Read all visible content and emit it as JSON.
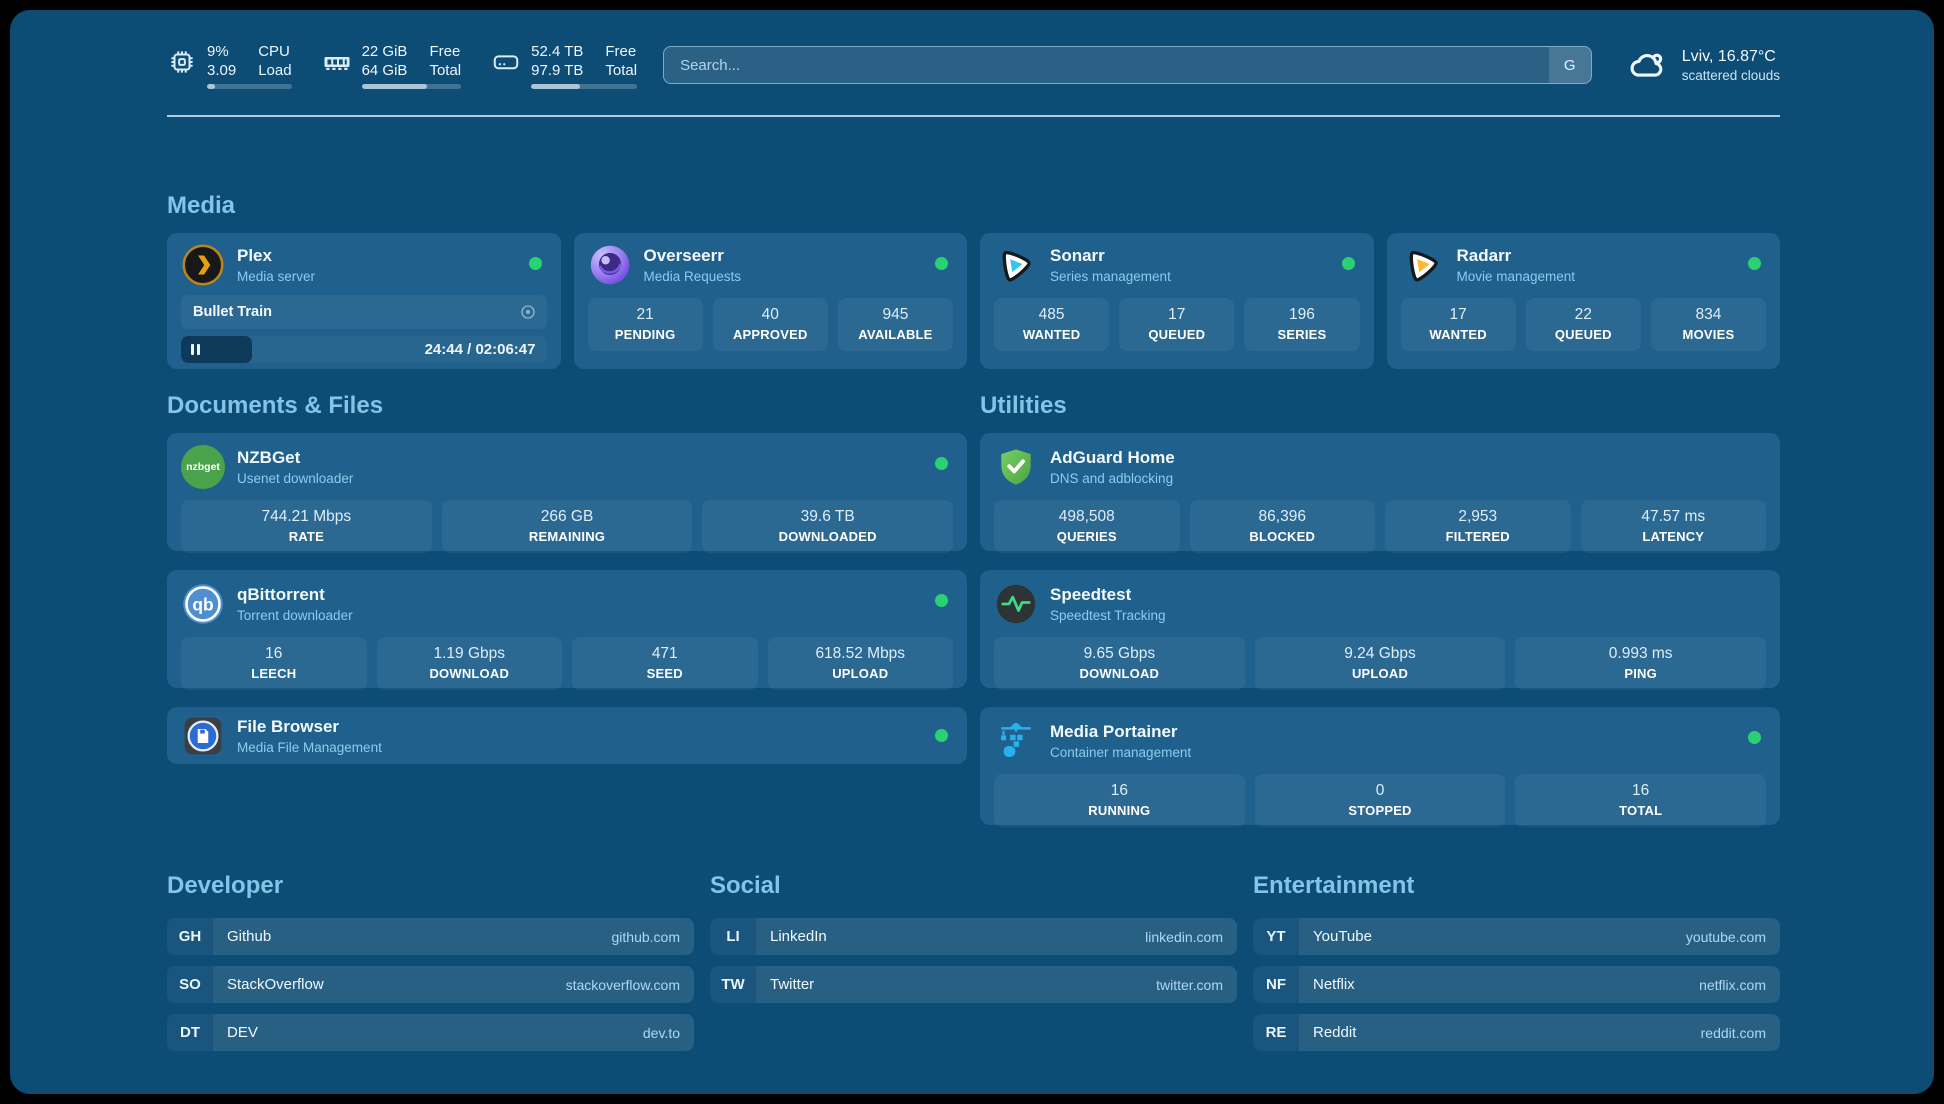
{
  "topbar": {
    "metrics": [
      {
        "value1": "9%",
        "value2": "3.09",
        "label1": "CPU",
        "label2": "Load",
        "progress_pct": 9
      },
      {
        "value1": "22 GiB",
        "value2": "64 GiB",
        "label1": "Free",
        "label2": "Total",
        "progress_pct": 66
      },
      {
        "value1": "52.4 TB",
        "value2": "97.9 TB",
        "label1": "Free",
        "label2": "Total",
        "progress_pct": 46
      }
    ],
    "search": {
      "placeholder": "Search...",
      "button_label": "G"
    },
    "weather": {
      "location": "Lviv, 16.87°C",
      "condition": "scattered clouds"
    }
  },
  "sections": {
    "media": {
      "title": "Media",
      "cards": [
        {
          "name": "Plex",
          "subtitle": "Media server",
          "status": "online",
          "now_playing": {
            "title": "Bullet Train",
            "time": "24:44 / 02:06:47",
            "progress_pct": 19.5
          }
        },
        {
          "name": "Overseerr",
          "subtitle": "Media Requests",
          "status": "online",
          "stats": [
            {
              "value": "21",
              "label": "PENDING"
            },
            {
              "value": "40",
              "label": "APPROVED"
            },
            {
              "value": "945",
              "label": "AVAILABLE"
            }
          ]
        },
        {
          "name": "Sonarr",
          "subtitle": "Series management",
          "status": "online",
          "stats": [
            {
              "value": "485",
              "label": "WANTED"
            },
            {
              "value": "17",
              "label": "QUEUED"
            },
            {
              "value": "196",
              "label": "SERIES"
            }
          ]
        },
        {
          "name": "Radarr",
          "subtitle": "Movie management",
          "status": "online",
          "stats": [
            {
              "value": "17",
              "label": "WANTED"
            },
            {
              "value": "22",
              "label": "QUEUED"
            },
            {
              "value": "834",
              "label": "MOVIES"
            }
          ]
        }
      ]
    },
    "documents": {
      "title": "Documents & Files",
      "cards": [
        {
          "name": "NZBGet",
          "subtitle": "Usenet downloader",
          "status": "online",
          "stats": [
            {
              "value": "744.21 Mbps",
              "label": "RATE"
            },
            {
              "value": "266 GB",
              "label": "REMAINING"
            },
            {
              "value": "39.6 TB",
              "label": "DOWNLOADED"
            }
          ]
        },
        {
          "name": "qBittorrent",
          "subtitle": "Torrent downloader",
          "status": "online",
          "stats": [
            {
              "value": "16",
              "label": "LEECH"
            },
            {
              "value": "1.19 Gbps",
              "label": "DOWNLOAD"
            },
            {
              "value": "471",
              "label": "SEED"
            },
            {
              "value": "618.52 Mbps",
              "label": "UPLOAD"
            }
          ]
        },
        {
          "name": "File Browser",
          "subtitle": "Media File Management",
          "status": "online"
        }
      ]
    },
    "utilities": {
      "title": "Utilities",
      "cards": [
        {
          "name": "AdGuard Home",
          "subtitle": "DNS and adblocking",
          "stats": [
            {
              "value": "498,508",
              "label": "QUERIES"
            },
            {
              "value": "86,396",
              "label": "BLOCKED"
            },
            {
              "value": "2,953",
              "label": "FILTERED"
            },
            {
              "value": "47.57 ms",
              "label": "LATENCY"
            }
          ]
        },
        {
          "name": "Speedtest",
          "subtitle": "Speedtest Tracking",
          "stats": [
            {
              "value": "9.65 Gbps",
              "label": "DOWNLOAD"
            },
            {
              "value": "9.24 Gbps",
              "label": "UPLOAD"
            },
            {
              "value": "0.993 ms",
              "label": "PING"
            }
          ]
        },
        {
          "name": "Media Portainer",
          "subtitle": "Container management",
          "status": "online",
          "stats": [
            {
              "value": "16",
              "label": "RUNNING"
            },
            {
              "value": "0",
              "label": "STOPPED"
            },
            {
              "value": "16",
              "label": "TOTAL"
            }
          ]
        }
      ]
    },
    "links": [
      {
        "title": "Developer",
        "items": [
          {
            "tag": "GH",
            "name": "Github",
            "url": "github.com"
          },
          {
            "tag": "SO",
            "name": "StackOverflow",
            "url": "stackoverflow.com"
          },
          {
            "tag": "DT",
            "name": "DEV",
            "url": "dev.to"
          }
        ]
      },
      {
        "title": "Social",
        "items": [
          {
            "tag": "LI",
            "name": "LinkedIn",
            "url": "linkedin.com"
          },
          {
            "tag": "TW",
            "name": "Twitter",
            "url": "twitter.com"
          }
        ]
      },
      {
        "title": "Entertainment",
        "items": [
          {
            "tag": "YT",
            "name": "YouTube",
            "url": "youtube.com"
          },
          {
            "tag": "NF",
            "name": "Netflix",
            "url": "netflix.com"
          },
          {
            "tag": "RE",
            "name": "Reddit",
            "url": "reddit.com"
          }
        ]
      }
    ]
  },
  "colors": {
    "background": "#0d4c75",
    "card": "#1f608c",
    "accent": "#85c4e9",
    "status_online": "#29d173"
  }
}
